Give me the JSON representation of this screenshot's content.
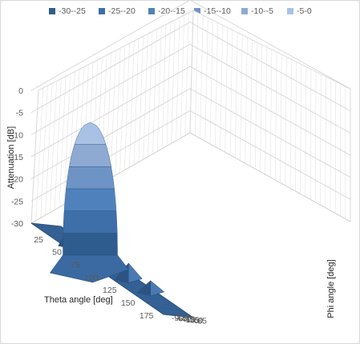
{
  "chart_data": {
    "type": "surface",
    "title": "",
    "zlabel": "Attenuation [dB]",
    "xlabel": "Theta angle [deg]",
    "ylabel": "Phi angle [deg]",
    "z_ticks": [
      "0",
      "-5",
      "-10",
      "-15",
      "-20",
      "-25",
      "-30"
    ],
    "zlim": [
      -30,
      0
    ],
    "theta_ticks": [
      "25",
      "50",
      "75",
      "100",
      "125",
      "150",
      "175"
    ],
    "phi_ticks": [
      "85",
      "60",
      "35",
      "10",
      "-15",
      "-40",
      "-65",
      "-90"
    ],
    "legend": [
      {
        "label": "-30--25",
        "color": "#2F5C8F"
      },
      {
        "label": "-25--20",
        "color": "#3E6FA8"
      },
      {
        "label": "-20--15",
        "color": "#4F82BD"
      },
      {
        "label": "-15--10",
        "color": "#6E94C5"
      },
      {
        "label": "-10--5",
        "color": "#8EAAD3"
      },
      {
        "label": "-5-0",
        "color": "#A9C1E4"
      }
    ],
    "peak": {
      "theta": 60,
      "phi": 0,
      "value": 0
    },
    "side_lobes": [
      {
        "theta": 50,
        "phi": -40,
        "value": -25
      },
      {
        "theta": 60,
        "phi": -15,
        "value": -25
      },
      {
        "theta": 35,
        "phi": 0,
        "value": -26
      },
      {
        "theta": 80,
        "phi": 35,
        "value": -26
      },
      {
        "theta": 100,
        "phi": 60,
        "value": -27
      },
      {
        "theta": 125,
        "phi": 85,
        "value": -28
      },
      {
        "theta": 85,
        "phi": -90,
        "value": -29
      }
    ],
    "grid": true,
    "legend_position": "top"
  }
}
